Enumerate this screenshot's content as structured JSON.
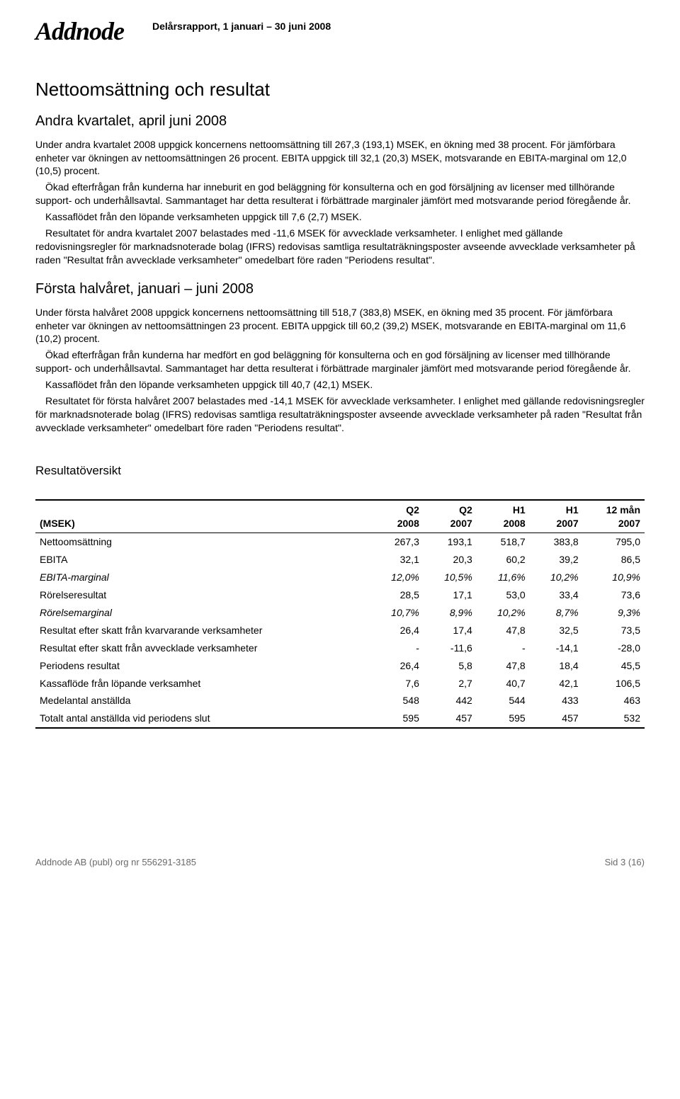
{
  "header": {
    "logo": "Addnode",
    "subtitle": "Delårsrapport, 1 januari – 30 juni 2008"
  },
  "title": "Nettoomsättning och resultat",
  "sectionA": {
    "heading": "Andra kvartalet, april juni 2008",
    "p1": "Under andra kvartalet 2008 uppgick koncernens nettoomsättning till 267,3 (193,1) MSEK, en ökning med 38 procent. För jämförbara enheter var ökningen av nettoomsättningen 26 procent. EBITA uppgick till 32,1 (20,3) MSEK, motsvarande en EBITA-marginal om 12,0 (10,5) procent.",
    "p2": "Ökad efterfrågan från kunderna har inneburit en god beläggning för konsulterna och en god försäljning av licenser med tillhörande support- och underhållsavtal. Sammantaget har detta resulterat i förbättrade marginaler jämfört med motsvarande period föregående år.",
    "p3": "Kassaflödet från den löpande verksamheten uppgick till 7,6 (2,7) MSEK.",
    "p4": "Resultatet för andra kvartalet 2007 belastades med -11,6 MSEK för avvecklade verksamheter. I enlighet med gällande redovisningsregler för marknadsnoterade bolag (IFRS) redovisas samtliga resultaträkningsposter avseende avvecklade verksamheter på raden \"Resultat från avvecklade verksamheter\" omedelbart före raden \"Periodens resultat\"."
  },
  "sectionB": {
    "heading": "Första halvåret, januari – juni 2008",
    "p1": "Under första halvåret 2008 uppgick koncernens nettoomsättning till 518,7 (383,8) MSEK, en ökning med 35 procent. För jämförbara enheter var ökningen av nettoomsättningen 23 procent. EBITA uppgick till 60,2 (39,2) MSEK, motsvarande en EBITA-marginal om 11,6 (10,2) procent.",
    "p2": "Ökad efterfrågan från kunderna har medfört en god beläggning för konsulterna och en god försäljning av licenser med tillhörande support- och underhållsavtal. Sammantaget har detta resulterat i förbättrade marginaler jämfört med motsvarande period föregående år.",
    "p3": "Kassaflödet från den löpande verksamheten uppgick till 40,7 (42,1) MSEK.",
    "p4": "Resultatet för första halvåret 2007 belastades med -14,1 MSEK för avvecklade verksamheter. I enlighet med gällande redovisningsregler för marknadsnoterade bolag (IFRS) redovisas samtliga resultaträkningsposter avseende avvecklade verksamheter på raden \"Resultat från avvecklade verksamheter\" omedelbart före raden \"Periodens resultat\"."
  },
  "tableTitle": "Resultatöversikt",
  "table": {
    "type": "table",
    "header_rowlabel": "(MSEK)",
    "columns": [
      {
        "top": "Q2",
        "bot": "2008"
      },
      {
        "top": "Q2",
        "bot": "2007"
      },
      {
        "top": "H1",
        "bot": "2008"
      },
      {
        "top": "H1",
        "bot": "2007"
      },
      {
        "top": "12 mån",
        "bot": "2007"
      }
    ],
    "rows": [
      {
        "label": "Nettoomsättning",
        "cells": [
          "267,3",
          "193,1",
          "518,7",
          "383,8",
          "795,0"
        ],
        "italic": false
      },
      {
        "label": "EBITA",
        "cells": [
          "32,1",
          "20,3",
          "60,2",
          "39,2",
          "86,5"
        ],
        "italic": false
      },
      {
        "label": "EBITA-marginal",
        "cells": [
          "12,0%",
          "10,5%",
          "11,6%",
          "10,2%",
          "10,9%"
        ],
        "italic": true
      },
      {
        "label": "Rörelseresultat",
        "cells": [
          "28,5",
          "17,1",
          "53,0",
          "33,4",
          "73,6"
        ],
        "italic": false
      },
      {
        "label": "Rörelsemarginal",
        "cells": [
          "10,7%",
          "8,9%",
          "10,2%",
          "8,7%",
          "9,3%"
        ],
        "italic": true
      },
      {
        "label": "Resultat efter skatt från kvarvarande verksamheter",
        "cells": [
          "26,4",
          "17,4",
          "47,8",
          "32,5",
          "73,5"
        ],
        "italic": false
      },
      {
        "label": "Resultat efter skatt från avvecklade verksamheter",
        "cells": [
          "-",
          "-11,6",
          "-",
          "-14,1",
          "-28,0"
        ],
        "italic": false
      },
      {
        "label": "Periodens resultat",
        "cells": [
          "26,4",
          "5,8",
          "47,8",
          "18,4",
          "45,5"
        ],
        "italic": false
      },
      {
        "label": "Kassaflöde från löpande verksamhet",
        "cells": [
          "7,6",
          "2,7",
          "40,7",
          "42,1",
          "106,5"
        ],
        "italic": false
      },
      {
        "label": "Medelantal anställda",
        "cells": [
          "548",
          "442",
          "544",
          "433",
          "463"
        ],
        "italic": false
      },
      {
        "label": "Totalt antal anställda vid periodens slut",
        "cells": [
          "595",
          "457",
          "595",
          "457",
          "532"
        ],
        "italic": false
      }
    ],
    "font_size": 14,
    "border_color": "#000000",
    "background_color": "#ffffff"
  },
  "footer": {
    "left": "Addnode AB (publ) org nr 556291-3185",
    "mid": "Sid 3 (16)"
  }
}
